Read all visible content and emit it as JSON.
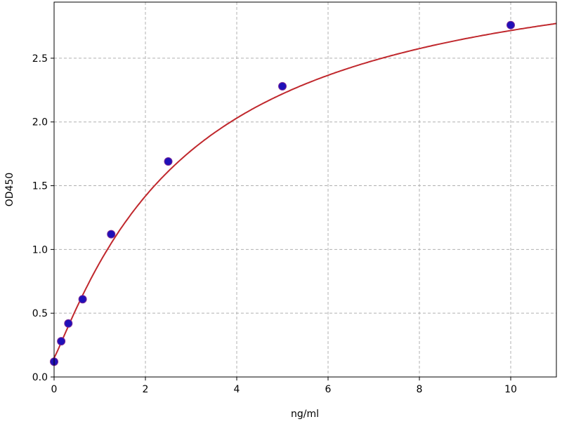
{
  "chart_data": {
    "type": "scatter",
    "title": "",
    "xlabel": "ng/ml",
    "ylabel": "OD450",
    "xlim": [
      0,
      11
    ],
    "ylim": [
      0,
      2.94
    ],
    "xticks": [
      0,
      2,
      4,
      6,
      8,
      10
    ],
    "yticks": [
      0.0,
      0.5,
      1.0,
      1.5,
      2.0,
      2.5
    ],
    "xtick_labels": [
      "0",
      "2",
      "4",
      "6",
      "8",
      "10"
    ],
    "ytick_labels": [
      "0.0",
      "0.5",
      "1.0",
      "1.5",
      "2.0",
      "2.5"
    ],
    "grid": true,
    "series": [
      {
        "type": "scatter",
        "x": [
          0,
          0.156,
          0.3125,
          0.625,
          1.25,
          2.5,
          5,
          10
        ],
        "y": [
          0.12,
          0.28,
          0.42,
          0.61,
          1.12,
          1.69,
          2.28,
          2.76
        ],
        "color": "#1f10b8"
      },
      {
        "type": "line",
        "fit": "standard curve",
        "color": "#c0282d"
      }
    ]
  }
}
